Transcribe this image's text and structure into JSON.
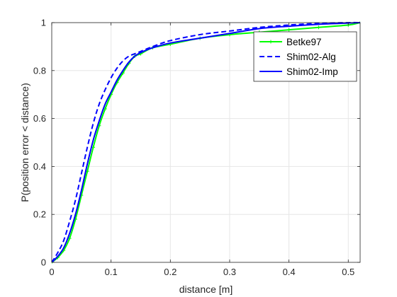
{
  "chart_data": {
    "type": "line",
    "title": "",
    "xlabel": "distance [m]",
    "ylabel": "P(position error < distance)",
    "xlim": [
      0,
      0.52
    ],
    "ylim": [
      0,
      1
    ],
    "xticks": [
      0,
      0.1,
      0.2,
      0.3,
      0.4,
      0.5
    ],
    "xtick_labels": [
      "0",
      "0.1",
      "0.2",
      "0.3",
      "0.4",
      "0.5"
    ],
    "yticks": [
      0,
      0.2,
      0.4,
      0.6,
      0.8,
      1
    ],
    "ytick_labels": [
      "0",
      "0.2",
      "0.4",
      "0.6",
      "0.8",
      "1"
    ],
    "grid": true,
    "legend_position": "top-right",
    "series": [
      {
        "name": "Betke97",
        "color": "#00ff00",
        "style": "solid-with-markers",
        "x": [
          0,
          0.01,
          0.02,
          0.03,
          0.04,
          0.05,
          0.06,
          0.07,
          0.08,
          0.09,
          0.1,
          0.11,
          0.12,
          0.13,
          0.14,
          0.15,
          0.17,
          0.2,
          0.25,
          0.3,
          0.35,
          0.4,
          0.45,
          0.5,
          0.52
        ],
        "y": [
          0,
          0.02,
          0.05,
          0.1,
          0.18,
          0.28,
          0.38,
          0.48,
          0.57,
          0.64,
          0.7,
          0.75,
          0.79,
          0.83,
          0.86,
          0.87,
          0.895,
          0.91,
          0.935,
          0.95,
          0.96,
          0.97,
          0.98,
          0.99,
          1.0
        ]
      },
      {
        "name": "Shim02-Alg",
        "color": "#0000ff",
        "style": "dashed",
        "x": [
          0,
          0.01,
          0.02,
          0.03,
          0.04,
          0.05,
          0.06,
          0.07,
          0.08,
          0.09,
          0.1,
          0.11,
          0.12,
          0.13,
          0.14,
          0.15,
          0.17,
          0.2,
          0.25,
          0.3,
          0.35,
          0.4,
          0.45,
          0.5,
          0.52
        ],
        "y": [
          0,
          0.04,
          0.09,
          0.17,
          0.26,
          0.37,
          0.48,
          0.58,
          0.66,
          0.72,
          0.77,
          0.81,
          0.84,
          0.86,
          0.87,
          0.88,
          0.9,
          0.925,
          0.95,
          0.965,
          0.98,
          0.99,
          0.997,
          1.0,
          1.0
        ]
      },
      {
        "name": "Shim02-Imp",
        "color": "#0000ff",
        "style": "solid",
        "x": [
          0,
          0.01,
          0.02,
          0.03,
          0.04,
          0.05,
          0.06,
          0.07,
          0.08,
          0.09,
          0.1,
          0.11,
          0.12,
          0.13,
          0.14,
          0.15,
          0.17,
          0.2,
          0.25,
          0.3,
          0.35,
          0.4,
          0.45,
          0.5,
          0.52
        ],
        "y": [
          0,
          0.025,
          0.06,
          0.12,
          0.2,
          0.3,
          0.41,
          0.51,
          0.59,
          0.66,
          0.71,
          0.76,
          0.8,
          0.835,
          0.86,
          0.875,
          0.895,
          0.915,
          0.935,
          0.955,
          0.975,
          0.985,
          0.993,
          0.998,
          1.0
        ]
      }
    ]
  }
}
